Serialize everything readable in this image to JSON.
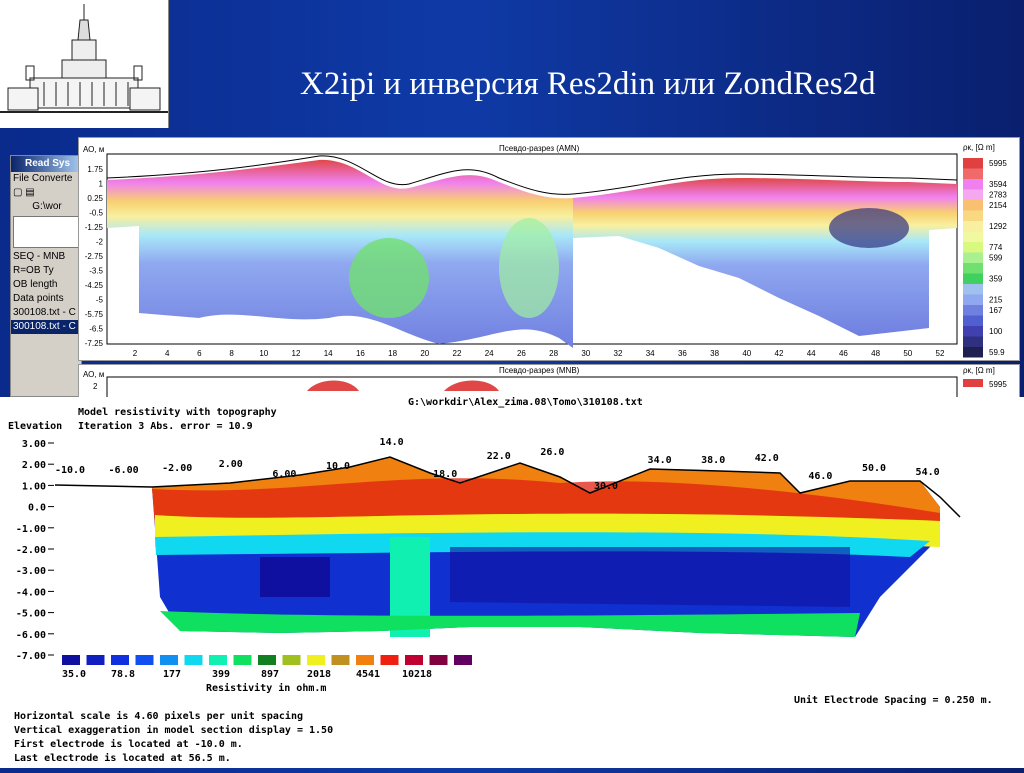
{
  "slide": {
    "title": "X2ipi  и  инверсия Res2din или ZondRes2d"
  },
  "background_window": {
    "title": "Read Sys",
    "menu": [
      "File",
      "Converte"
    ],
    "path": "G:\\wor",
    "labels": [
      "SEQ - MNB",
      "R=OB  Ty",
      "OB length",
      "Data points"
    ],
    "files": [
      "300108.txt - C",
      "300108.txt - C"
    ]
  },
  "pseudo_section_1": {
    "title": "Псевдо-разрез (AMN)",
    "y_axis_label": "АО, м",
    "y_ticks": [
      "1.75",
      "1",
      "0.25",
      "-0.5",
      "-1.25",
      "-2",
      "-2.75",
      "-3.5",
      "-4.25",
      "-5",
      "-5.75",
      "-6.5",
      "-7.25"
    ],
    "x_ticks": [
      "2",
      "4",
      "6",
      "8",
      "10",
      "12",
      "14",
      "16",
      "18",
      "20",
      "22",
      "24",
      "26",
      "28",
      "30",
      "32",
      "34",
      "36",
      "38",
      "40",
      "42",
      "44",
      "46",
      "48",
      "50",
      "52"
    ],
    "legend_title": "ρк, [Ω m]",
    "legend": [
      {
        "value": "5995",
        "color": "#e04040"
      },
      {
        "value": "",
        "color": "#f06a6a"
      },
      {
        "value": "3594",
        "color": "#f080f0"
      },
      {
        "value": "2783",
        "color": "#f5a8f0"
      },
      {
        "value": "2154",
        "color": "#f8c070"
      },
      {
        "value": "",
        "color": "#f8d880"
      },
      {
        "value": "1292",
        "color": "#f8f0a0"
      },
      {
        "value": "",
        "color": "#f0f8a0"
      },
      {
        "value": "774",
        "color": "#d8f880"
      },
      {
        "value": "599",
        "color": "#a8f090"
      },
      {
        "value": "",
        "color": "#70e070"
      },
      {
        "value": "359",
        "color": "#40d060"
      },
      {
        "value": "",
        "color": "#a0c0f0"
      },
      {
        "value": "215",
        "color": "#90a8f0"
      },
      {
        "value": "167",
        "color": "#7080e0"
      },
      {
        "value": "",
        "color": "#5060d0"
      },
      {
        "value": "100",
        "color": "#4040b0"
      },
      {
        "value": "",
        "color": "#303080"
      },
      {
        "value": "59.9",
        "color": "#202050"
      }
    ]
  },
  "pseudo_section_2": {
    "title": "Псевдо-разрез (MNB)",
    "y_axis_label": "АО, м",
    "y_tick": "2",
    "legend_title": "ρк, [Ω m]",
    "legend_value": "5995"
  },
  "model_section": {
    "file_path": "G:\\workdir\\Alex_zima.08\\Tomo\\310108.txt",
    "title_line1": "Model resistivity with topography",
    "title_line2": "Iteration 3 Abs. error = 10.9",
    "elevation_label": "Elevation",
    "y_ticks": [
      "3.00",
      "2.00",
      "1.00",
      "0.0",
      "-1.00",
      "-2.00",
      "-3.00",
      "-4.00",
      "-5.00",
      "-6.00",
      "-7.00"
    ],
    "electrode_labels": [
      "-10.0",
      "-6.00",
      "-2.00",
      "2.00",
      "6.00",
      "10.0",
      "14.0",
      "18.0",
      "22.0",
      "26.0",
      "30.0",
      "34.0",
      "38.0",
      "42.0",
      "46.0",
      "50.0",
      "54.0"
    ],
    "color_scale": [
      "#1010a0",
      "#1020c0",
      "#1030e0",
      "#1050f0",
      "#1090f0",
      "#10d8f0",
      "#10f0b0",
      "#10e060",
      "#108020",
      "#a0c020",
      "#f0f020",
      "#c09020",
      "#f08010",
      "#f02010",
      "#c00030",
      "#800040",
      "#600060"
    ],
    "scale_values": [
      "35.0",
      "78.8",
      "177",
      "399",
      "897",
      "2018",
      "4541",
      "10218"
    ],
    "scale_caption": "Resistivity in ohm.m",
    "unit_spacing": "Unit Electrode Spacing = 0.250 m.",
    "notes": [
      "Horizontal scale is 4.60 pixels per unit spacing",
      "Vertical exaggeration in model section display = 1.50",
      "First electrode is located at -10.0  m.",
      "Last electrode is located at 56.5 m."
    ]
  }
}
